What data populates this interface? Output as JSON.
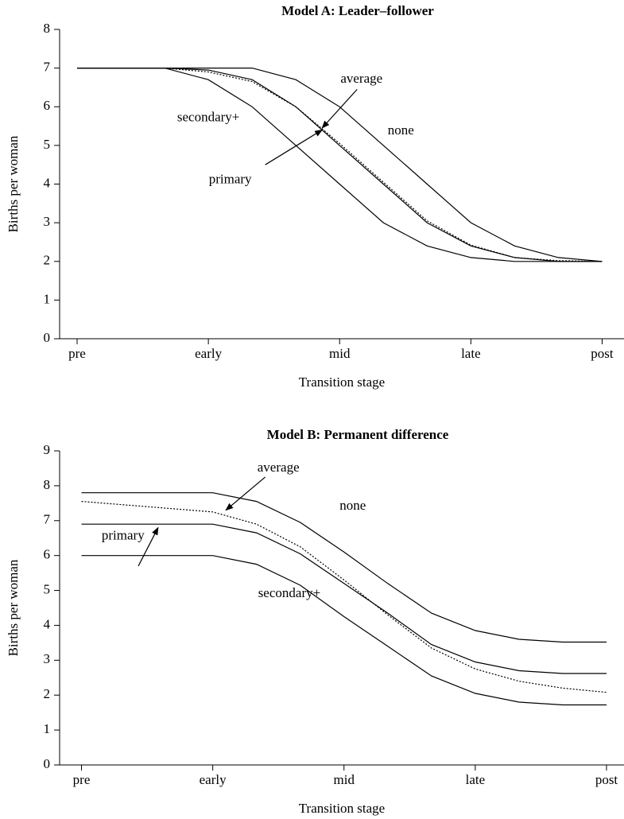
{
  "chart_data": [
    {
      "type": "line",
      "title": "Model A: Leader–follower",
      "xlabel": "Transition stage",
      "ylabel": "Births per woman",
      "x": [
        0,
        1,
        2,
        3,
        4,
        5,
        6,
        7,
        8,
        9,
        10,
        11,
        12
      ],
      "xlim": [
        -0.4,
        12.5
      ],
      "xticks": [
        {
          "value": 0,
          "label": "pre"
        },
        {
          "value": 3,
          "label": "early"
        },
        {
          "value": 6,
          "label": "mid"
        },
        {
          "value": 9,
          "label": "late"
        },
        {
          "value": 12,
          "label": "post"
        }
      ],
      "ylim": [
        0,
        8
      ],
      "yticks": [
        0,
        1,
        2,
        3,
        4,
        5,
        6,
        7,
        8
      ],
      "series": [
        {
          "name": "none",
          "color": "#000000",
          "linestyle": "solid",
          "values": [
            7,
            7,
            7,
            7,
            7,
            6.7,
            6,
            5,
            4,
            3,
            2.4,
            2.1,
            2
          ]
        },
        {
          "name": "primary",
          "color": "#000000",
          "linestyle": "solid",
          "values": [
            7,
            7,
            7,
            6.95,
            6.7,
            6,
            5,
            4,
            3,
            2.4,
            2.1,
            2,
            2
          ]
        },
        {
          "name": "secondary+",
          "color": "#000000",
          "linestyle": "solid",
          "values": [
            7,
            7,
            7,
            6.7,
            6,
            5,
            4,
            3,
            2.4,
            2.1,
            2,
            2,
            2
          ]
        },
        {
          "name": "average",
          "color": "#000000",
          "linestyle": "dotted",
          "values": [
            7,
            7,
            7,
            6.9,
            6.65,
            6,
            5.05,
            4.05,
            3.05,
            2.42,
            2.1,
            2.02,
            2
          ]
        }
      ],
      "annotations": [
        {
          "text": "average"
        },
        {
          "text": "none"
        },
        {
          "text": "secondary+"
        },
        {
          "text": "primary"
        }
      ]
    },
    {
      "type": "line",
      "title": "Model B: Permanent difference",
      "xlabel": "Transition stage",
      "ylabel": "Births per woman",
      "x": [
        0,
        1,
        2,
        3,
        4,
        5,
        6,
        7,
        8,
        9,
        10,
        11,
        12
      ],
      "xlim": [
        -0.5,
        12.4
      ],
      "xticks": [
        {
          "value": 0,
          "label": "pre"
        },
        {
          "value": 3,
          "label": "early"
        },
        {
          "value": 6,
          "label": "mid"
        },
        {
          "value": 9,
          "label": "late"
        },
        {
          "value": 12,
          "label": "post"
        }
      ],
      "ylim": [
        0,
        9
      ],
      "yticks": [
        0,
        1,
        2,
        3,
        4,
        5,
        6,
        7,
        8,
        9
      ],
      "series": [
        {
          "name": "none",
          "color": "#000000",
          "linestyle": "solid",
          "values": [
            7.8,
            7.8,
            7.8,
            7.8,
            7.55,
            6.95,
            6.1,
            5.2,
            4.35,
            3.85,
            3.6,
            3.52,
            3.52
          ]
        },
        {
          "name": "primary",
          "color": "#000000",
          "linestyle": "solid",
          "values": [
            6.9,
            6.9,
            6.9,
            6.9,
            6.65,
            6.05,
            5.2,
            4.35,
            3.45,
            2.95,
            2.7,
            2.62,
            2.62
          ]
        },
        {
          "name": "secondary+",
          "color": "#000000",
          "linestyle": "solid",
          "values": [
            6,
            6,
            6,
            6,
            5.75,
            5.15,
            4.25,
            3.4,
            2.55,
            2.05,
            1.8,
            1.72,
            1.72
          ]
        },
        {
          "name": "average",
          "color": "#000000",
          "linestyle": "dotted",
          "values": [
            7.55,
            7.45,
            7.35,
            7.25,
            6.9,
            6.25,
            5.3,
            4.3,
            3.35,
            2.75,
            2.4,
            2.2,
            2.08
          ]
        }
      ],
      "annotations": [
        {
          "text": "average"
        },
        {
          "text": "none"
        },
        {
          "text": "primary"
        },
        {
          "text": "secondary+"
        }
      ]
    }
  ]
}
